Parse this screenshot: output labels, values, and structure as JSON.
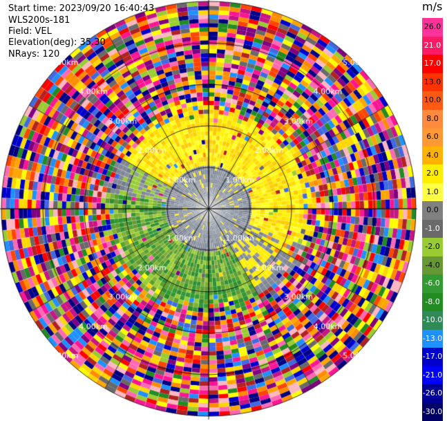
{
  "header": {
    "start_time": "Start time: 2023/09/20 16:40:43",
    "instrument": "WLS200s-181",
    "field": "Field: VEL",
    "elevation": "Elevation(deg): 35.30",
    "nrays": "NRays: 120"
  },
  "chart_data": {
    "type": "heatmap",
    "projection": "polar-ppi",
    "field": "VEL",
    "units": "m/s",
    "n_rays": 120,
    "elevation_deg": 35.3,
    "range_rings_km": [
      1.0,
      2.0,
      3.0,
      4.0,
      5.0
    ],
    "range_ring_labels": [
      "1.00km",
      "2.00km",
      "3.00km",
      "4.00km",
      "5.00km"
    ],
    "max_range_km": 5.0,
    "colorbar": {
      "title": "m/s",
      "ticks": [
        "26.0",
        "21.0",
        "17.0",
        "13.0",
        "10.0",
        "8.0",
        "6.0",
        "4.0",
        "2.0",
        "1.0",
        "0.0",
        "-1.0",
        "-2.0",
        "-4.0",
        "-6.0",
        "-8.0",
        "-10.0",
        "-13.0",
        "-17.0",
        "-21.0",
        "-26.0",
        "-30.0"
      ],
      "colors": [
        "#ff3399",
        "#ff1a66",
        "#ff0000",
        "#ff3300",
        "#ff5a14",
        "#ff8a3d",
        "#ff9933",
        "#ffb300",
        "#ffee00",
        "#ffff44",
        "#808080",
        "#6a6a6a",
        "#99cc33",
        "#669933",
        "#339933",
        "#228b22",
        "#2e8b57",
        "#1e90ff",
        "#0000cd",
        "#0000ff",
        "#000099",
        "#000066"
      ]
    },
    "pattern": {
      "near_range_km": 1.0,
      "near_color": "#808896",
      "mid_range_km": 2.0,
      "positive_sector": "north and east (yellow, +2 to +4 m/s)",
      "negative_sector": "south and west (green, -2 to -6 m/s)",
      "far_field": "noisy multicolour beyond ~2.5 km"
    }
  }
}
